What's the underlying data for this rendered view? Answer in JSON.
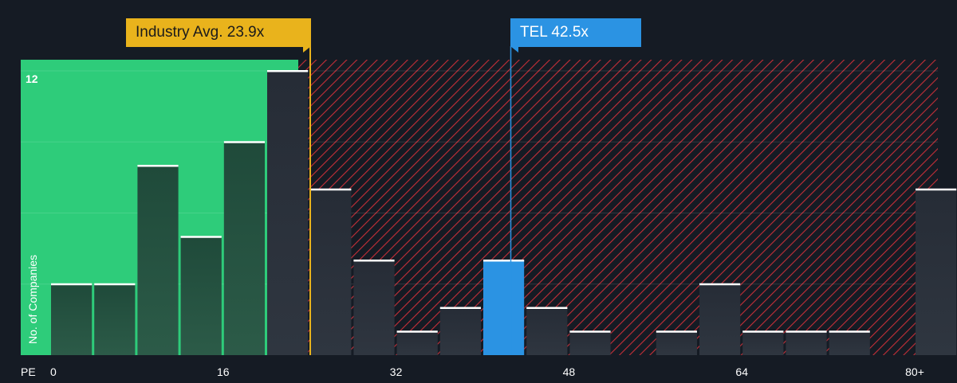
{
  "chart_data": {
    "type": "bar",
    "x_axis_label": "PE",
    "y_axis_label": "No. of Companies",
    "x_ticks": [
      "0",
      "16",
      "32",
      "48",
      "64",
      "80+"
    ],
    "y_ticks": [
      "12"
    ],
    "bin_width": 4,
    "ylim": [
      0,
      12
    ],
    "bins": [
      {
        "start": 0,
        "count": 3
      },
      {
        "start": 4,
        "count": 3
      },
      {
        "start": 8,
        "count": 8
      },
      {
        "start": 12,
        "count": 5
      },
      {
        "start": 16,
        "count": 9
      },
      {
        "start": 20,
        "count": 12
      },
      {
        "start": 24,
        "count": 7
      },
      {
        "start": 28,
        "count": 4
      },
      {
        "start": 32,
        "count": 1
      },
      {
        "start": 36,
        "count": 2
      },
      {
        "start": 40,
        "count": 4
      },
      {
        "start": 44,
        "count": 2
      },
      {
        "start": 48,
        "count": 1
      },
      {
        "start": 52,
        "count": 0
      },
      {
        "start": 56,
        "count": 1
      },
      {
        "start": 60,
        "count": 3
      },
      {
        "start": 64,
        "count": 1
      },
      {
        "start": 68,
        "count": 1
      },
      {
        "start": 72,
        "count": 1
      },
      {
        "start": 76,
        "count": 0
      },
      {
        "start": 80,
        "count": 7
      }
    ],
    "industry_avg": {
      "label": "Industry Avg. 23.9x",
      "value": 23.9,
      "color": "#e9b31c"
    },
    "subject": {
      "label": "TEL 42.5x",
      "value": 42.5,
      "color": "#2b93e3"
    },
    "colors": {
      "background": "#151b24",
      "undervalued_zone": "#2ecc7a",
      "overvalued_stripe": "#d6333c",
      "bar_fill": "#1f4a38",
      "bar_top": "#ffffff",
      "subject_bar": "#2b93e3"
    }
  }
}
